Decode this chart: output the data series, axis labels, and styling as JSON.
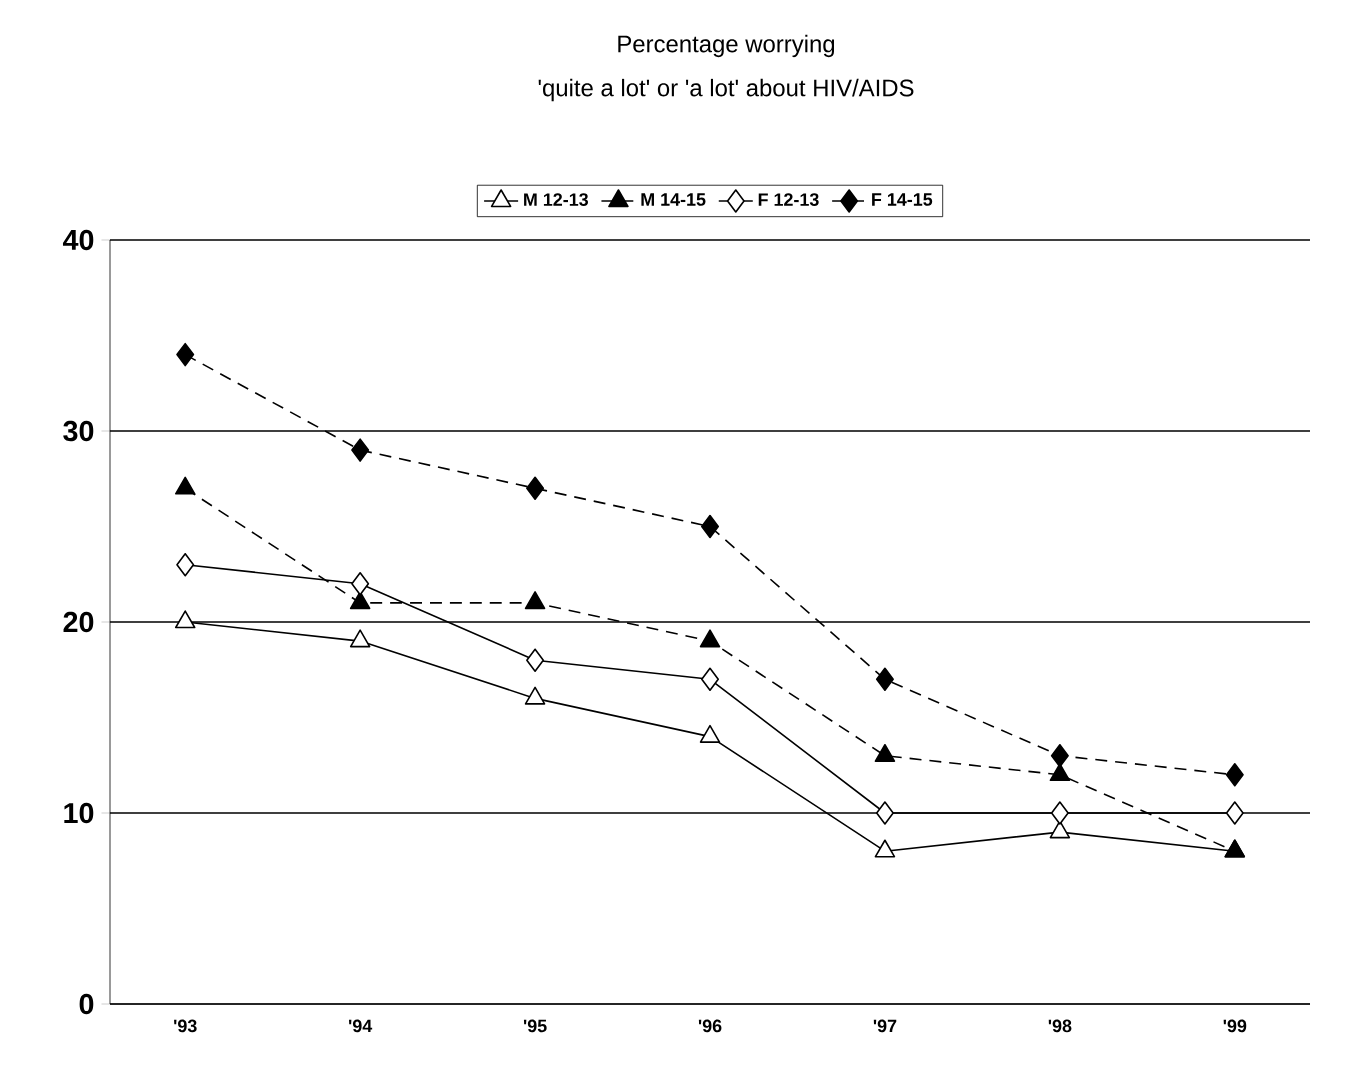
{
  "chart_data": {
    "type": "line",
    "title": "Percentage worrying",
    "subtitle": "'quite a lot' or 'a lot' about HIV/AIDS",
    "categories": [
      "'93",
      "'94",
      "'95",
      "'96",
      "'97",
      "'98",
      "'99"
    ],
    "series": [
      {
        "name": "M 12-13",
        "color": "#000000",
        "marker": "triangle",
        "line_style": "solid",
        "values": [
          20,
          19,
          16,
          14,
          8,
          9,
          8
        ]
      },
      {
        "name": "M 14-15",
        "color": "#000000",
        "marker": "triangle",
        "line_style": "dashed",
        "values": [
          27,
          21,
          21,
          19,
          13,
          12,
          8
        ]
      },
      {
        "name": "F 12-13",
        "color": "#000000",
        "marker": "diamond",
        "line_style": "solid",
        "values": [
          23,
          22,
          18,
          17,
          10,
          10,
          10
        ]
      },
      {
        "name": "F 14-15",
        "color": "#000000",
        "marker": "diamond",
        "line_style": "dashed",
        "values": [
          34,
          29,
          27,
          25,
          17,
          13,
          12
        ]
      }
    ],
    "ylim": [
      0,
      40
    ],
    "yticks": [
      0,
      10,
      20,
      30,
      40
    ],
    "grid": "y",
    "legend": "top"
  }
}
